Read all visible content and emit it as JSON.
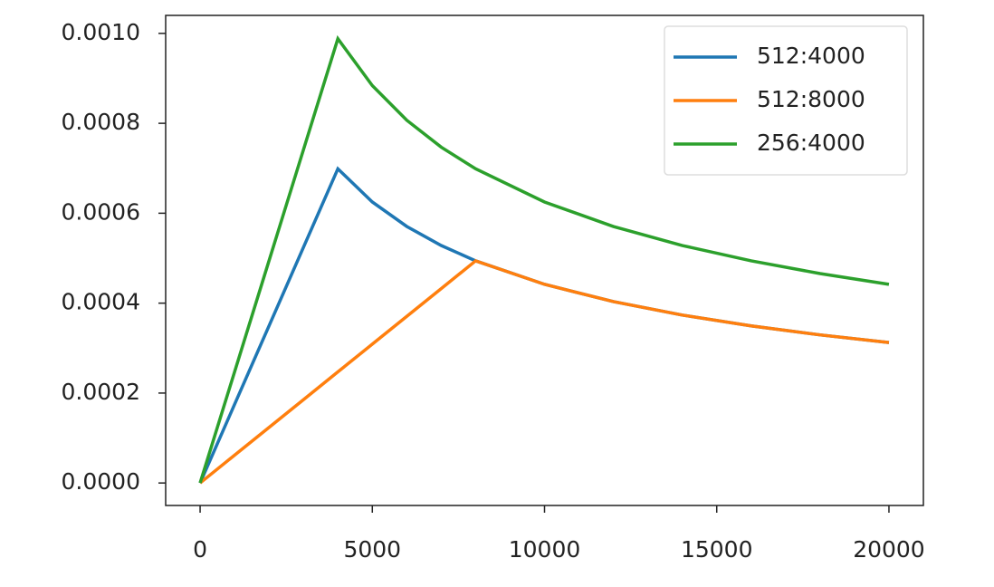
{
  "chart_data": {
    "type": "line",
    "x": [
      0,
      1000,
      2000,
      3000,
      4000,
      5000,
      6000,
      7000,
      8000,
      10000,
      12000,
      14000,
      16000,
      18000,
      20000
    ],
    "series": [
      {
        "name": "512:4000",
        "color": "#1f77b4",
        "values": [
          0,
          0.0001747,
          0.0003494,
          0.0005241,
          0.0006988,
          0.000625,
          0.0005706,
          0.0005282,
          0.0004941,
          0.0004419,
          0.0004034,
          0.0003735,
          0.0003494,
          0.0003294,
          0.0003125
        ]
      },
      {
        "name": "512:8000",
        "color": "#ff7f0e",
        "values": [
          0,
          6.18e-05,
          0.0001235,
          0.0001853,
          0.0002471,
          0.0003088,
          0.0003706,
          0.0004323,
          0.0004941,
          0.0004419,
          0.0004034,
          0.0003735,
          0.0003494,
          0.0003294,
          0.0003125
        ]
      },
      {
        "name": "256:4000",
        "color": "#2ca02c",
        "values": [
          0,
          0.000247,
          0.0004941,
          0.0007411,
          0.0009882,
          0.0008839,
          0.0008069,
          0.000747,
          0.0006988,
          0.000625,
          0.0005705,
          0.0005282,
          0.0004941,
          0.0004658,
          0.0004419
        ]
      }
    ],
    "xlim": [
      -1000,
      21000
    ],
    "xticks": [
      0,
      5000,
      10000,
      15000,
      20000
    ],
    "ylim": [
      -5e-05,
      0.00104
    ],
    "yticks": [
      {
        "value": 0,
        "label": "0.0000"
      },
      {
        "value": 0.0002,
        "label": "0.0002"
      },
      {
        "value": 0.0004,
        "label": "0.0004"
      },
      {
        "value": 0.0006,
        "label": "0.0006"
      },
      {
        "value": 0.0008,
        "label": "0.0008"
      },
      {
        "value": 0.001,
        "label": "0.0010"
      }
    ],
    "grid": false,
    "legend": "upper right"
  }
}
